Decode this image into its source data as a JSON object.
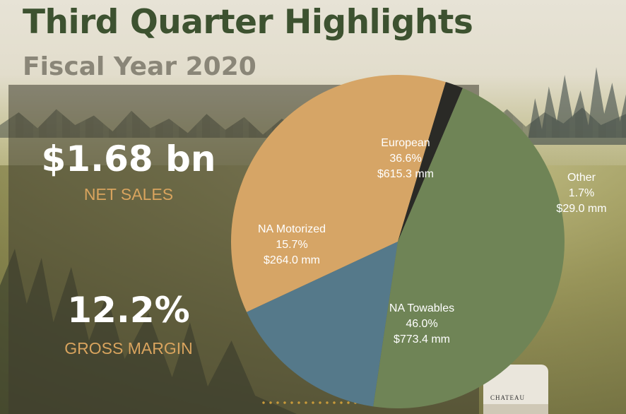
{
  "header": {
    "title": "Third Quarter Highlights",
    "subtitle": "Fiscal Year 2020"
  },
  "kpis": {
    "net_sales": {
      "value": "$1.68 bn",
      "label": "NET SALES"
    },
    "gross_margin": {
      "value": "12.2%",
      "label": "GROSS MARGIN"
    }
  },
  "background": {
    "camper_brand": "CHATEAU"
  },
  "chart_data": {
    "type": "pie",
    "title": "",
    "slices": [
      {
        "name": "European",
        "percent_label": "36.6%",
        "amount_label": "$615.3 mm",
        "value": 615.3,
        "color": "#d6a566"
      },
      {
        "name": "Other",
        "percent_label": "1.7%",
        "amount_label": "$29.0 mm",
        "value": 29.0,
        "color": "#2a2a26"
      },
      {
        "name": "NA Towables",
        "percent_label": "46.0%",
        "amount_label": "$773.4 mm",
        "value": 773.4,
        "color": "#6f8456"
      },
      {
        "name": "NA Motorized",
        "percent_label": "15.7%",
        "amount_label": "$264.0 mm",
        "value": 264.0,
        "color": "#55798a"
      }
    ]
  }
}
